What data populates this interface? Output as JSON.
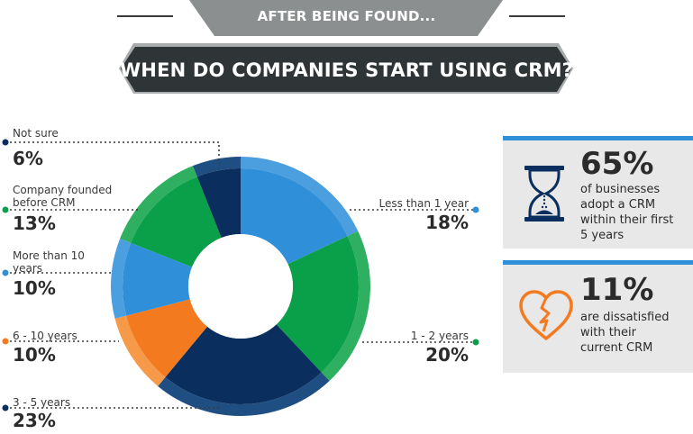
{
  "header": {
    "subtitle": "AFTER BEING FOUND...",
    "title": "WHEN DO COMPANIES START USING CRM?"
  },
  "chart_data": {
    "type": "pie",
    "hole": true,
    "slices": [
      {
        "label": "Less than 1 year",
        "value": 18,
        "display": "18%",
        "color": "#2f8fd8",
        "ring": "#4c9fde"
      },
      {
        "label": "1 - 2 years",
        "value": 20,
        "display": "20%",
        "color": "#0aa04a",
        "ring": "#2fb060"
      },
      {
        "label": "3 - 5 years",
        "value": 23,
        "display": "23%",
        "color": "#0a2f5e",
        "ring": "#1f4f82"
      },
      {
        "label": "6 - 10 years",
        "value": 10,
        "display": "10%",
        "color": "#f47a20",
        "ring": "#f69a4a"
      },
      {
        "label": "More than 10 years",
        "value": 10,
        "display": "10%",
        "color": "#2f8fd8",
        "ring": "#4c9fde"
      },
      {
        "label": "Company founded before CRM",
        "value": 13,
        "display": "13%",
        "color": "#0aa04a",
        "ring": "#2fb060"
      },
      {
        "label": "Not sure",
        "value": 6,
        "display": "6%",
        "color": "#0a2f5e",
        "ring": "#1f4f82"
      }
    ]
  },
  "legend": {
    "not_sure": {
      "label": "Not sure",
      "pct": "6%"
    },
    "founded": {
      "label_1": "Company founded",
      "label_2": "before CRM",
      "pct": "13%"
    },
    "more10": {
      "label_1": "More than 10",
      "label_2": "years",
      "pct": "10%"
    },
    "six10": {
      "label": "6 - 10 years",
      "pct": "10%"
    },
    "three5": {
      "label": "3 - 5 years",
      "pct": "23%"
    },
    "less1": {
      "label": "Less than 1 year",
      "pct": "18%"
    },
    "one2": {
      "label": "1 - 2 years",
      "pct": "20%"
    }
  },
  "cards": [
    {
      "value": "65%",
      "line1": "of businesses",
      "line2": "adopt a CRM",
      "line3": "within their first",
      "line4": "5 years",
      "icon": "hourglass-icon"
    },
    {
      "value": "11%",
      "line1": "are dissatisfied",
      "line2": "with their",
      "line3": "current CRM",
      "icon": "broken-heart-icon"
    }
  ],
  "colors": {
    "accent_blue": "#2f8fd8",
    "green": "#0aa04a",
    "navy": "#0a2f5e",
    "orange": "#f47a20",
    "banner_dark": "#2f3536",
    "banner_grey": "#8c8f90",
    "card_bg": "#e8e8e8"
  }
}
